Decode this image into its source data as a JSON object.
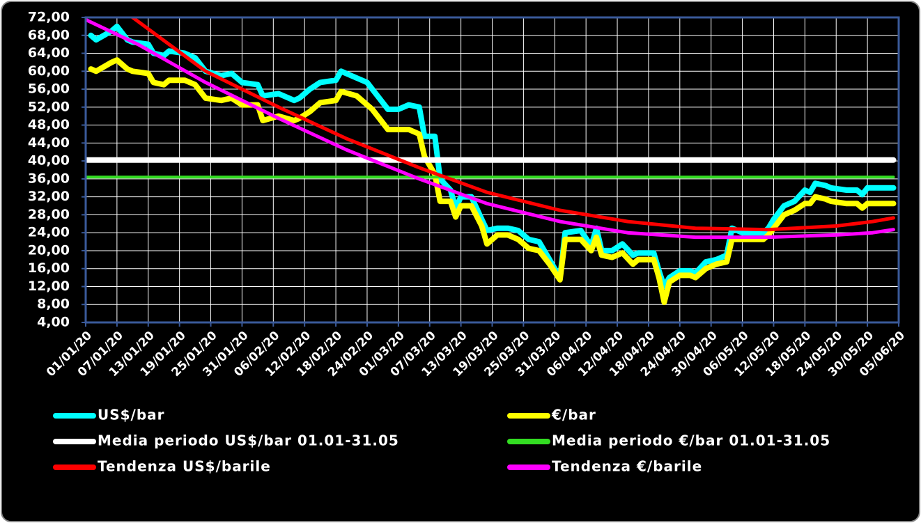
{
  "chart_data": {
    "type": "line",
    "legend": "bottom",
    "grid": true,
    "xlim": [
      "01/01/20",
      "05/06/20"
    ],
    "xticks": [
      "01/01/20",
      "07/01/20",
      "13/01/20",
      "19/01/20",
      "25/01/20",
      "31/01/20",
      "06/02/20",
      "12/02/20",
      "18/02/20",
      "24/02/20",
      "01/03/20",
      "07/03/20",
      "13/03/20",
      "19/03/20",
      "25/03/20",
      "31/03/20",
      "06/04/20",
      "12/04/20",
      "18/04/20",
      "24/04/20",
      "30/04/20",
      "06/05/20",
      "12/05/20",
      "18/05/20",
      "24/05/20",
      "30/05/20",
      "05/06/20"
    ],
    "ylim": [
      4,
      72
    ],
    "yticks": [
      {
        "value": 4,
        "label": "4,00"
      },
      {
        "value": 8,
        "label": "8,00"
      },
      {
        "value": 12,
        "label": "12,00"
      },
      {
        "value": 16,
        "label": "16,00"
      },
      {
        "value": 20,
        "label": "20,00"
      },
      {
        "value": 24,
        "label": "24,00"
      },
      {
        "value": 28,
        "label": "28,00"
      },
      {
        "value": 32,
        "label": "32,00"
      },
      {
        "value": 36,
        "label": "36,00"
      },
      {
        "value": 40,
        "label": "40,00"
      },
      {
        "value": 44,
        "label": "44,00"
      },
      {
        "value": 48,
        "label": "48,00"
      },
      {
        "value": 52,
        "label": "52,00"
      },
      {
        "value": 56,
        "label": "56,00"
      },
      {
        "value": 60,
        "label": "60,00"
      },
      {
        "value": 64,
        "label": "64,00"
      },
      {
        "value": 68,
        "label": "68,00"
      },
      {
        "value": 72,
        "label": "72,00"
      }
    ],
    "series": [
      {
        "name": "US$/bar",
        "color": "#00ffff",
        "width": 8,
        "x": [
          "02/01/20",
          "03/01/20",
          "06/01/20",
          "07/01/20",
          "09/01/20",
          "10/01/20",
          "13/01/20",
          "14/01/20",
          "16/01/20",
          "17/01/20",
          "20/01/20",
          "22/01/20",
          "24/01/20",
          "27/01/20",
          "29/01/20",
          "31/01/20",
          "03/02/20",
          "04/02/20",
          "07/02/20",
          "10/02/20",
          "11/02/20",
          "13/02/20",
          "15/02/20",
          "18/02/20",
          "19/02/20",
          "22/02/20",
          "24/02/20",
          "25/02/20",
          "28/02/20",
          "01/03/20",
          "03/03/20",
          "05/03/20",
          "06/03/20",
          "08/03/20",
          "09/03/20",
          "11/03/20",
          "12/03/20",
          "13/03/20",
          "15/03/20",
          "17/03/20",
          "18/03/20",
          "20/03/20",
          "22/03/20",
          "24/03/20",
          "26/03/20",
          "28/03/20",
          "30/03/20",
          "01/04/20",
          "02/04/20",
          "05/04/20",
          "07/04/20",
          "08/04/20",
          "09/04/20",
          "11/04/20",
          "13/04/20",
          "15/04/20",
          "16/04/20",
          "19/04/20",
          "20/04/20",
          "21/04/20",
          "22/04/20",
          "24/04/20",
          "26/04/20",
          "27/04/20",
          "29/04/20",
          "01/05/20",
          "03/05/20",
          "04/05/20",
          "06/05/20",
          "08/05/20",
          "10/05/20",
          "11/05/20",
          "12/05/20",
          "14/05/20",
          "16/05/20",
          "18/05/20",
          "19/05/20",
          "20/05/20",
          "22/05/20",
          "23/05/20",
          "26/05/20",
          "28/05/20",
          "29/05/20",
          "30/05/20",
          "04/06/20"
        ],
        "values": [
          68,
          67,
          69,
          70,
          67,
          66.5,
          66,
          64,
          63.5,
          64.5,
          64,
          63,
          60,
          59,
          59.5,
          57.5,
          57,
          54.5,
          55,
          53.5,
          54,
          56,
          57.5,
          58,
          60,
          58.5,
          57.5,
          56,
          51.5,
          51.5,
          52.5,
          52,
          45.5,
          45.5,
          36,
          33.5,
          29.5,
          32,
          32,
          27,
          24.5,
          25,
          25,
          24.5,
          22.5,
          22,
          18,
          14,
          24,
          24.5,
          21,
          25,
          20,
          20,
          21.5,
          19,
          19.5,
          19.5,
          15.5,
          12,
          14,
          15.5,
          15.5,
          15,
          17.5,
          18,
          19,
          25,
          24,
          24,
          24,
          25,
          27,
          30,
          31,
          33.5,
          33,
          35,
          34.5,
          34,
          33.5,
          33.5,
          32.5,
          34,
          34
        ]
      },
      {
        "name": "€/bar",
        "color": "#ffff00",
        "width": 8,
        "x": [
          "02/01/20",
          "03/01/20",
          "06/01/20",
          "07/01/20",
          "09/01/20",
          "10/01/20",
          "13/01/20",
          "14/01/20",
          "16/01/20",
          "17/01/20",
          "20/01/20",
          "22/01/20",
          "24/01/20",
          "27/01/20",
          "29/01/20",
          "31/01/20",
          "03/02/20",
          "04/02/20",
          "07/02/20",
          "10/02/20",
          "11/02/20",
          "13/02/20",
          "15/02/20",
          "18/02/20",
          "19/02/20",
          "22/02/20",
          "24/02/20",
          "25/02/20",
          "28/02/20",
          "01/03/20",
          "03/03/20",
          "05/03/20",
          "06/03/20",
          "08/03/20",
          "09/03/20",
          "11/03/20",
          "12/03/20",
          "13/03/20",
          "15/03/20",
          "17/03/20",
          "18/03/20",
          "20/03/20",
          "22/03/20",
          "24/03/20",
          "26/03/20",
          "28/03/20",
          "30/03/20",
          "01/04/20",
          "02/04/20",
          "05/04/20",
          "07/04/20",
          "08/04/20",
          "09/04/20",
          "11/04/20",
          "13/04/20",
          "15/04/20",
          "16/04/20",
          "19/04/20",
          "20/04/20",
          "21/04/20",
          "22/04/20",
          "24/04/20",
          "26/04/20",
          "27/04/20",
          "29/04/20",
          "01/05/20",
          "03/05/20",
          "04/05/20",
          "06/05/20",
          "08/05/20",
          "10/05/20",
          "11/05/20",
          "12/05/20",
          "14/05/20",
          "16/05/20",
          "18/05/20",
          "19/05/20",
          "20/05/20",
          "22/05/20",
          "23/05/20",
          "26/05/20",
          "28/05/20",
          "29/05/20",
          "30/05/20",
          "04/06/20"
        ],
        "values": [
          60.5,
          60,
          62,
          62.5,
          60.5,
          60,
          59.5,
          57.5,
          57,
          58,
          58,
          57,
          54,
          53.5,
          54,
          52.5,
          52.5,
          49,
          50,
          49,
          49.5,
          51,
          53,
          53.5,
          55.5,
          54.5,
          52.5,
          51.5,
          47,
          47,
          47,
          46,
          41,
          37,
          31,
          31,
          27.5,
          30,
          30,
          25.5,
          21.5,
          23.5,
          23.5,
          22.5,
          20.5,
          20,
          17,
          13.5,
          22.5,
          22.5,
          20,
          23,
          19,
          18.5,
          19.5,
          17,
          18,
          18,
          14,
          8.5,
          13,
          14.5,
          14.5,
          14,
          16,
          17,
          17.5,
          22.5,
          22.5,
          22.5,
          22.5,
          23.5,
          25,
          28,
          29,
          30.5,
          30.5,
          32,
          31.5,
          31,
          30.5,
          30.5,
          29.5,
          30.5,
          30.5
        ]
      },
      {
        "name": "Media periodo US$/bar 01.01-31.05",
        "color": "#ffffff",
        "width": 8,
        "x": [
          "01/01/20",
          "04/06/20"
        ],
        "values": [
          40.2,
          40.2
        ]
      },
      {
        "name": "Media periodo €/bar 01.01-31.05",
        "color": "#33dd22",
        "width": 4,
        "x": [
          "01/01/20",
          "04/06/20"
        ],
        "values": [
          36.4,
          36.4
        ]
      },
      {
        "name": "Tendenza US$/barile",
        "color": "#ff0000",
        "width": 5,
        "x": [
          "10/01/20",
          "24/01/20",
          "07/02/20",
          "20/02/20",
          "05/03/20",
          "18/03/20",
          "01/04/20",
          "14/04/20",
          "27/04/20",
          "11/05/20",
          "24/05/20",
          "31/05/20",
          "04/06/20"
        ],
        "values": [
          72,
          60,
          52,
          45,
          38.5,
          33,
          29,
          26.5,
          25,
          24.7,
          25.5,
          26.5,
          27.3
        ]
      },
      {
        "name": "Tendenza €/barile",
        "color": "#ff00ff",
        "width": 5,
        "x": [
          "01/01/20",
          "11/01/20",
          "24/01/20",
          "07/02/20",
          "20/02/20",
          "05/03/20",
          "18/03/20",
          "01/04/20",
          "14/04/20",
          "27/04/20",
          "11/05/20",
          "24/05/20",
          "31/05/20",
          "04/06/20"
        ],
        "values": [
          71.5,
          66,
          57.5,
          49.5,
          42.5,
          36,
          30.5,
          26.5,
          24,
          23,
          23,
          23.5,
          24,
          24.7
        ]
      }
    ]
  }
}
